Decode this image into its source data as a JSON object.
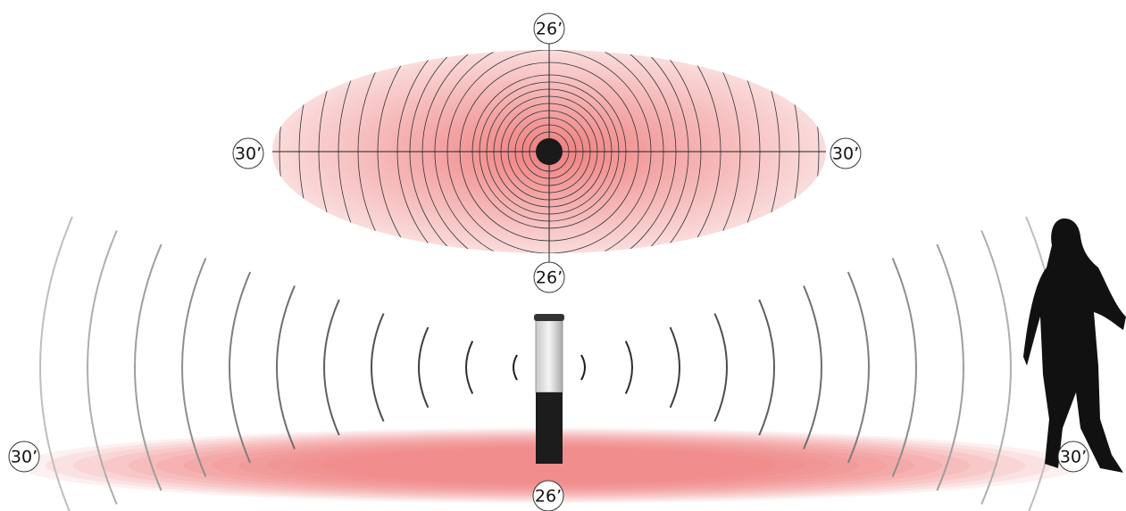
{
  "top_view": {
    "top": "26’",
    "bottom": "26’",
    "left": "30’",
    "right": "30’"
  },
  "side_view": {
    "left": "30’",
    "right": "30’",
    "bottom": "26’"
  }
}
